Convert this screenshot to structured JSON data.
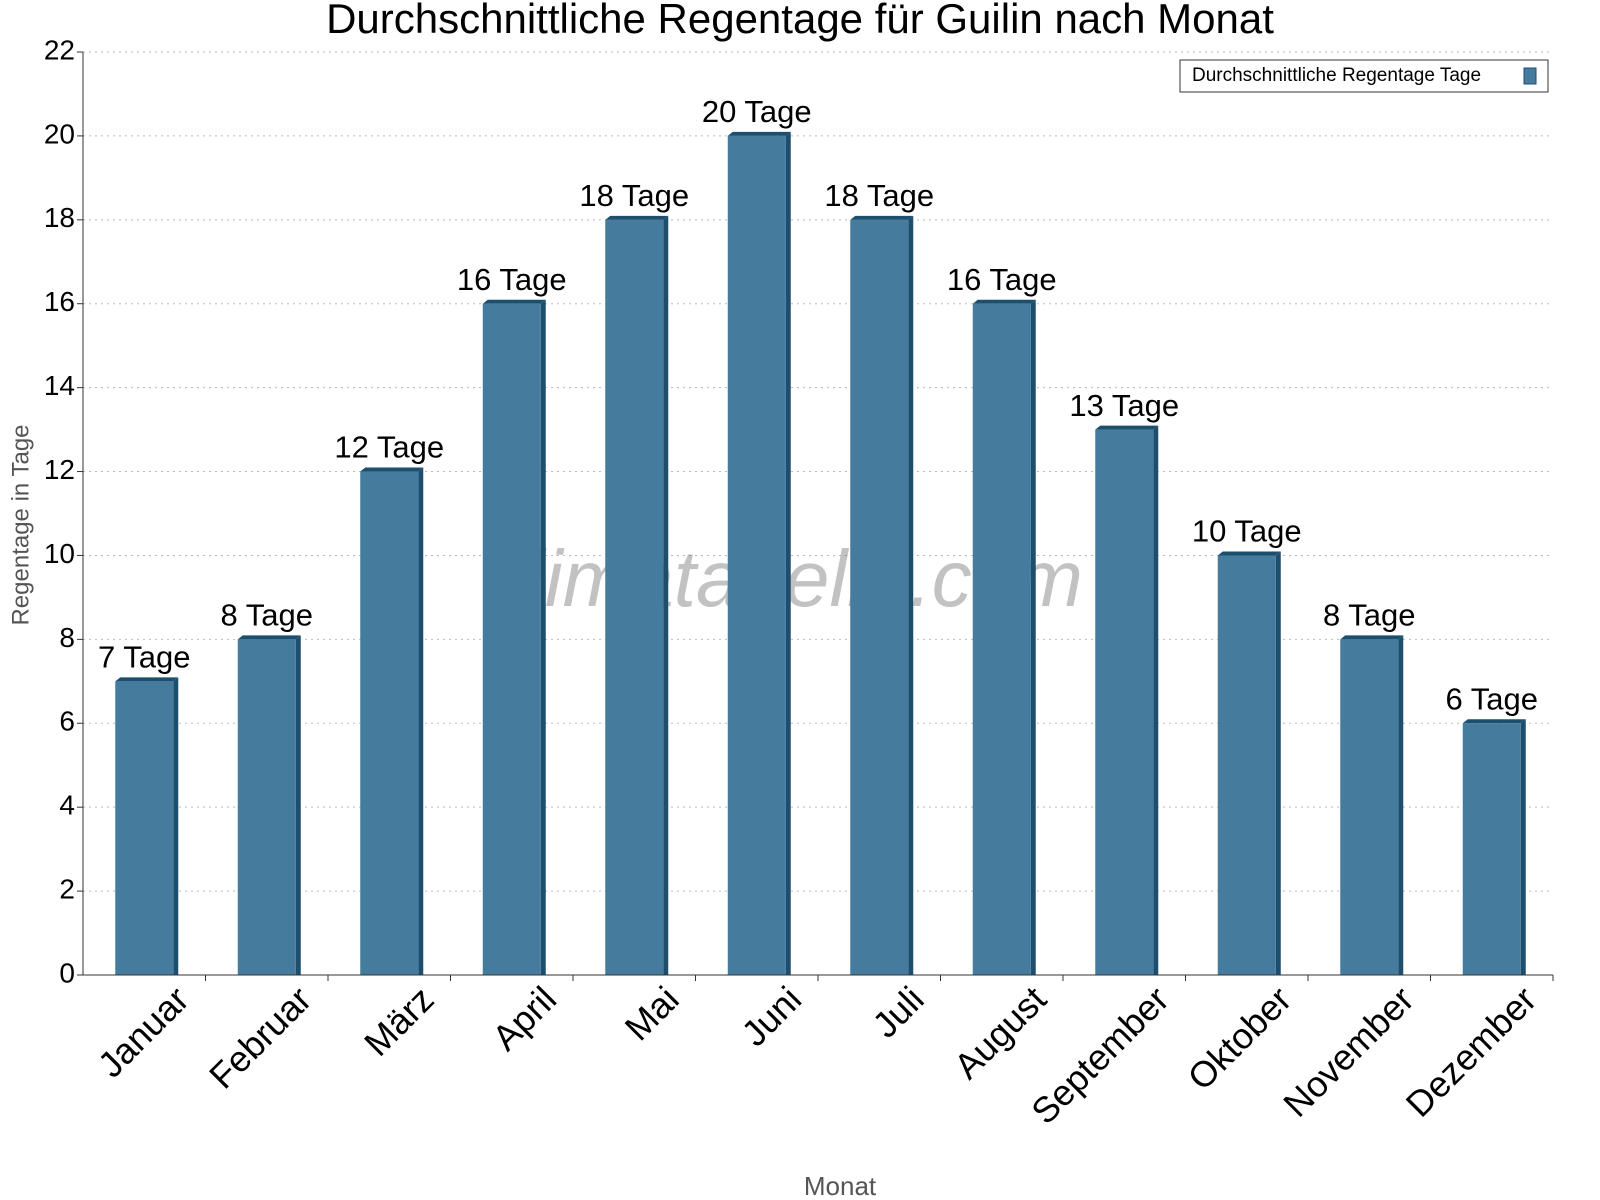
{
  "chart_data": {
    "type": "bar",
    "title": "Durchschnittliche Regentage für Guilin nach Monat",
    "x_label": "Monat",
    "y_label": "Regentage in Tage",
    "watermark": "klimatabelle.com",
    "categories": [
      "Januar",
      "Februar",
      "März",
      "April",
      "Mai",
      "Juni",
      "Juli",
      "August",
      "September",
      "Oktober",
      "November",
      "Dezember"
    ],
    "series": [
      {
        "name": "Durchschnittliche Regentage Tage",
        "color": "#457b9d",
        "values": [
          7,
          8,
          12,
          16,
          18,
          20,
          18,
          16,
          13,
          10,
          8,
          6
        ],
        "value_labels": [
          "7 Tage",
          "8 Tage",
          "12 Tage",
          "16 Tage",
          "18 Tage",
          "20 Tage",
          "18 Tage",
          "16 Tage",
          "13 Tage",
          "10 Tage",
          "8 Tage",
          "6 Tage"
        ]
      }
    ],
    "ylim": [
      0,
      22
    ],
    "yticks": [
      0,
      2,
      4,
      6,
      8,
      10,
      12,
      14,
      16,
      18,
      20,
      22
    ],
    "grid": true,
    "legend": "top-right"
  }
}
